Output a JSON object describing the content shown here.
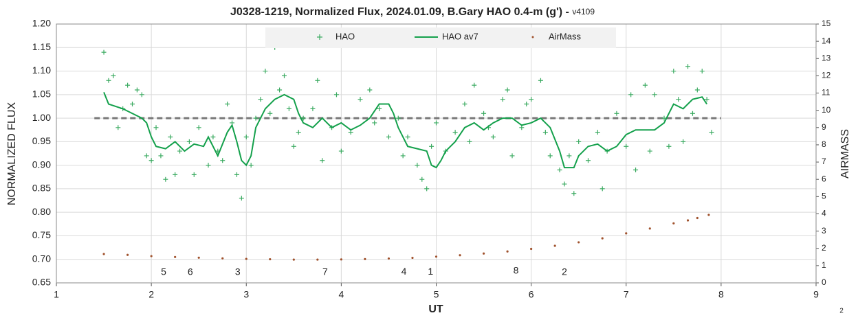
{
  "chart_data": {
    "type": "scatter",
    "title": "J0328-1219, Normalized Flux, 2024.01.09, B.Gary HAO 0.4-m (g') -",
    "version": "v4109",
    "x_label": "UT",
    "y_label": "NORMALIZED FLUX",
    "y2_label": "AIRMASS",
    "page_number": "2",
    "xlim": [
      1,
      9
    ],
    "xticks": [
      1,
      2,
      3,
      4,
      5,
      6,
      7,
      8,
      9
    ],
    "ylim": [
      0.65,
      1.2
    ],
    "yticks": [
      0.65,
      {
        "value": 0.7,
        "label": "0.70"
      },
      0.75,
      {
        "value": 0.8,
        "label": "0.80"
      },
      0.85,
      {
        "value": 0.9,
        "label": "0.90"
      },
      0.95,
      {
        "value": 1.0,
        "label": "1.00"
      },
      1.05,
      {
        "value": 1.1,
        "label": "1.10"
      },
      1.15,
      {
        "value": 1.2,
        "label": "1.20"
      }
    ],
    "y2lim": [
      0,
      15
    ],
    "y2ticks": [
      0,
      1,
      2,
      3,
      4,
      5,
      6,
      7,
      8,
      9,
      10,
      11,
      12,
      13,
      14,
      15
    ],
    "grid": true,
    "legend": "top",
    "reference_line": {
      "value": 1.0,
      "x": [
        1.4,
        8.0
      ],
      "color": "#777777"
    },
    "annotations": [
      {
        "text": "5",
        "x": 2.13,
        "y": 0.672
      },
      {
        "text": "6",
        "x": 2.41,
        "y": 0.672
      },
      {
        "text": "3",
        "x": 2.91,
        "y": 0.672
      },
      {
        "text": "7",
        "x": 3.83,
        "y": 0.672
      },
      {
        "text": "4",
        "x": 4.66,
        "y": 0.673
      },
      {
        "text": "1",
        "x": 4.94,
        "y": 0.673
      },
      {
        "text": "8",
        "x": 5.84,
        "y": 0.675
      },
      {
        "text": "2",
        "x": 6.35,
        "y": 0.672
      }
    ],
    "series": [
      {
        "name": "HAO",
        "kind": "points",
        "color": "#3aaa60",
        "x": [
          1.5,
          1.55,
          1.6,
          1.65,
          1.7,
          1.75,
          1.8,
          1.85,
          1.9,
          1.95,
          2.0,
          2.05,
          2.1,
          2.15,
          2.2,
          2.25,
          2.3,
          2.4,
          2.45,
          2.5,
          2.6,
          2.65,
          2.7,
          2.75,
          2.8,
          2.85,
          2.9,
          2.95,
          3.0,
          3.05,
          3.1,
          3.15,
          3.2,
          3.25,
          3.3,
          3.35,
          3.4,
          3.45,
          3.5,
          3.55,
          3.6,
          3.7,
          3.75,
          3.8,
          3.9,
          3.95,
          4.0,
          4.1,
          4.2,
          4.3,
          4.35,
          4.4,
          4.5,
          4.6,
          4.65,
          4.7,
          4.8,
          4.85,
          4.9,
          4.95,
          5.0,
          5.1,
          5.2,
          5.3,
          5.35,
          5.4,
          5.5,
          5.55,
          5.6,
          5.7,
          5.75,
          5.8,
          5.9,
          5.95,
          6.0,
          6.1,
          6.15,
          6.2,
          6.3,
          6.35,
          6.4,
          6.45,
          6.5,
          6.6,
          6.7,
          6.75,
          6.8,
          6.9,
          7.0,
          7.05,
          7.1,
          7.2,
          7.25,
          7.3,
          7.4,
          7.45,
          7.5,
          7.55,
          7.6,
          7.65,
          7.7,
          7.75,
          7.8,
          7.85,
          7.9
        ],
        "values": [
          1.14,
          1.08,
          1.09,
          0.98,
          1.02,
          1.07,
          1.03,
          1.06,
          1.05,
          0.92,
          0.91,
          0.98,
          0.92,
          0.87,
          0.96,
          0.88,
          0.93,
          0.95,
          0.88,
          0.98,
          0.9,
          0.96,
          0.93,
          0.91,
          1.03,
          0.99,
          0.88,
          0.83,
          0.96,
          0.9,
          1.0,
          1.04,
          1.1,
          1.01,
          1.15,
          1.06,
          1.09,
          1.02,
          0.94,
          0.97,
          1.0,
          1.02,
          1.08,
          0.91,
          0.98,
          1.05,
          0.93,
          0.97,
          1.04,
          1.06,
          0.99,
          1.02,
          0.96,
          1.0,
          0.92,
          0.96,
          0.9,
          0.87,
          0.85,
          0.94,
          0.99,
          0.93,
          0.97,
          1.03,
          0.95,
          1.07,
          1.01,
          0.98,
          0.96,
          1.04,
          1.06,
          0.92,
          0.98,
          1.03,
          1.04,
          1.08,
          0.97,
          0.92,
          0.89,
          0.86,
          0.92,
          0.84,
          0.95,
          0.91,
          0.97,
          0.85,
          0.93,
          1.01,
          0.94,
          1.05,
          0.89,
          1.07,
          0.93,
          1.05,
          1.0,
          0.94,
          1.1,
          1.04,
          0.95,
          1.11,
          1.01,
          1.06,
          1.1,
          1.04,
          0.97
        ]
      },
      {
        "name": "HAO av7",
        "kind": "line",
        "color": "#13a04b",
        "x": [
          1.5,
          1.55,
          1.7,
          1.8,
          1.9,
          1.95,
          2.0,
          2.05,
          2.15,
          2.25,
          2.35,
          2.45,
          2.55,
          2.6,
          2.7,
          2.8,
          2.85,
          2.9,
          2.95,
          3.0,
          3.05,
          3.1,
          3.2,
          3.3,
          3.4,
          3.5,
          3.55,
          3.6,
          3.7,
          3.8,
          3.85,
          3.9,
          4.0,
          4.1,
          4.2,
          4.3,
          4.4,
          4.5,
          4.55,
          4.6,
          4.7,
          4.8,
          4.9,
          4.95,
          5.0,
          5.05,
          5.1,
          5.2,
          5.3,
          5.4,
          5.5,
          5.6,
          5.7,
          5.8,
          5.9,
          6.0,
          6.1,
          6.2,
          6.3,
          6.35,
          6.45,
          6.5,
          6.6,
          6.7,
          6.8,
          6.9,
          7.0,
          7.1,
          7.2,
          7.3,
          7.4,
          7.5,
          7.6,
          7.7,
          7.8,
          7.85
        ],
        "values": [
          1.055,
          1.03,
          1.02,
          1.01,
          1.0,
          0.99,
          0.96,
          0.94,
          0.935,
          0.95,
          0.93,
          0.945,
          0.94,
          0.96,
          0.92,
          0.97,
          0.985,
          0.95,
          0.91,
          0.9,
          0.92,
          0.98,
          1.02,
          1.04,
          1.05,
          1.04,
          1.01,
          0.99,
          0.98,
          1.0,
          0.99,
          0.98,
          0.99,
          0.975,
          0.985,
          1.0,
          1.03,
          1.03,
          1.01,
          0.98,
          0.94,
          0.935,
          0.93,
          0.9,
          0.895,
          0.91,
          0.93,
          0.95,
          0.98,
          0.99,
          0.975,
          0.99,
          1.0,
          1.0,
          0.985,
          0.99,
          1.0,
          0.98,
          0.93,
          0.895,
          0.895,
          0.92,
          0.94,
          0.945,
          0.93,
          0.94,
          0.965,
          0.975,
          0.975,
          0.975,
          0.99,
          1.03,
          1.02,
          1.04,
          1.045,
          1.03
        ]
      },
      {
        "name": "AirMass",
        "kind": "dots",
        "color": "#a0522d",
        "axis": "y2",
        "x": [
          1.5,
          1.75,
          2.0,
          2.25,
          2.5,
          2.75,
          3.0,
          3.25,
          3.5,
          3.75,
          4.0,
          4.25,
          4.5,
          4.75,
          5.0,
          5.25,
          5.5,
          5.75,
          6.0,
          6.25,
          6.5,
          6.75,
          7.0,
          7.25,
          7.5,
          7.65,
          7.75,
          7.87
        ],
        "values": [
          1.67,
          1.62,
          1.55,
          1.5,
          1.46,
          1.42,
          1.39,
          1.37,
          1.35,
          1.35,
          1.36,
          1.38,
          1.41,
          1.45,
          1.52,
          1.6,
          1.7,
          1.82,
          1.97,
          2.15,
          2.35,
          2.58,
          2.87,
          3.15,
          3.45,
          3.62,
          3.76,
          3.94
        ]
      }
    ]
  }
}
